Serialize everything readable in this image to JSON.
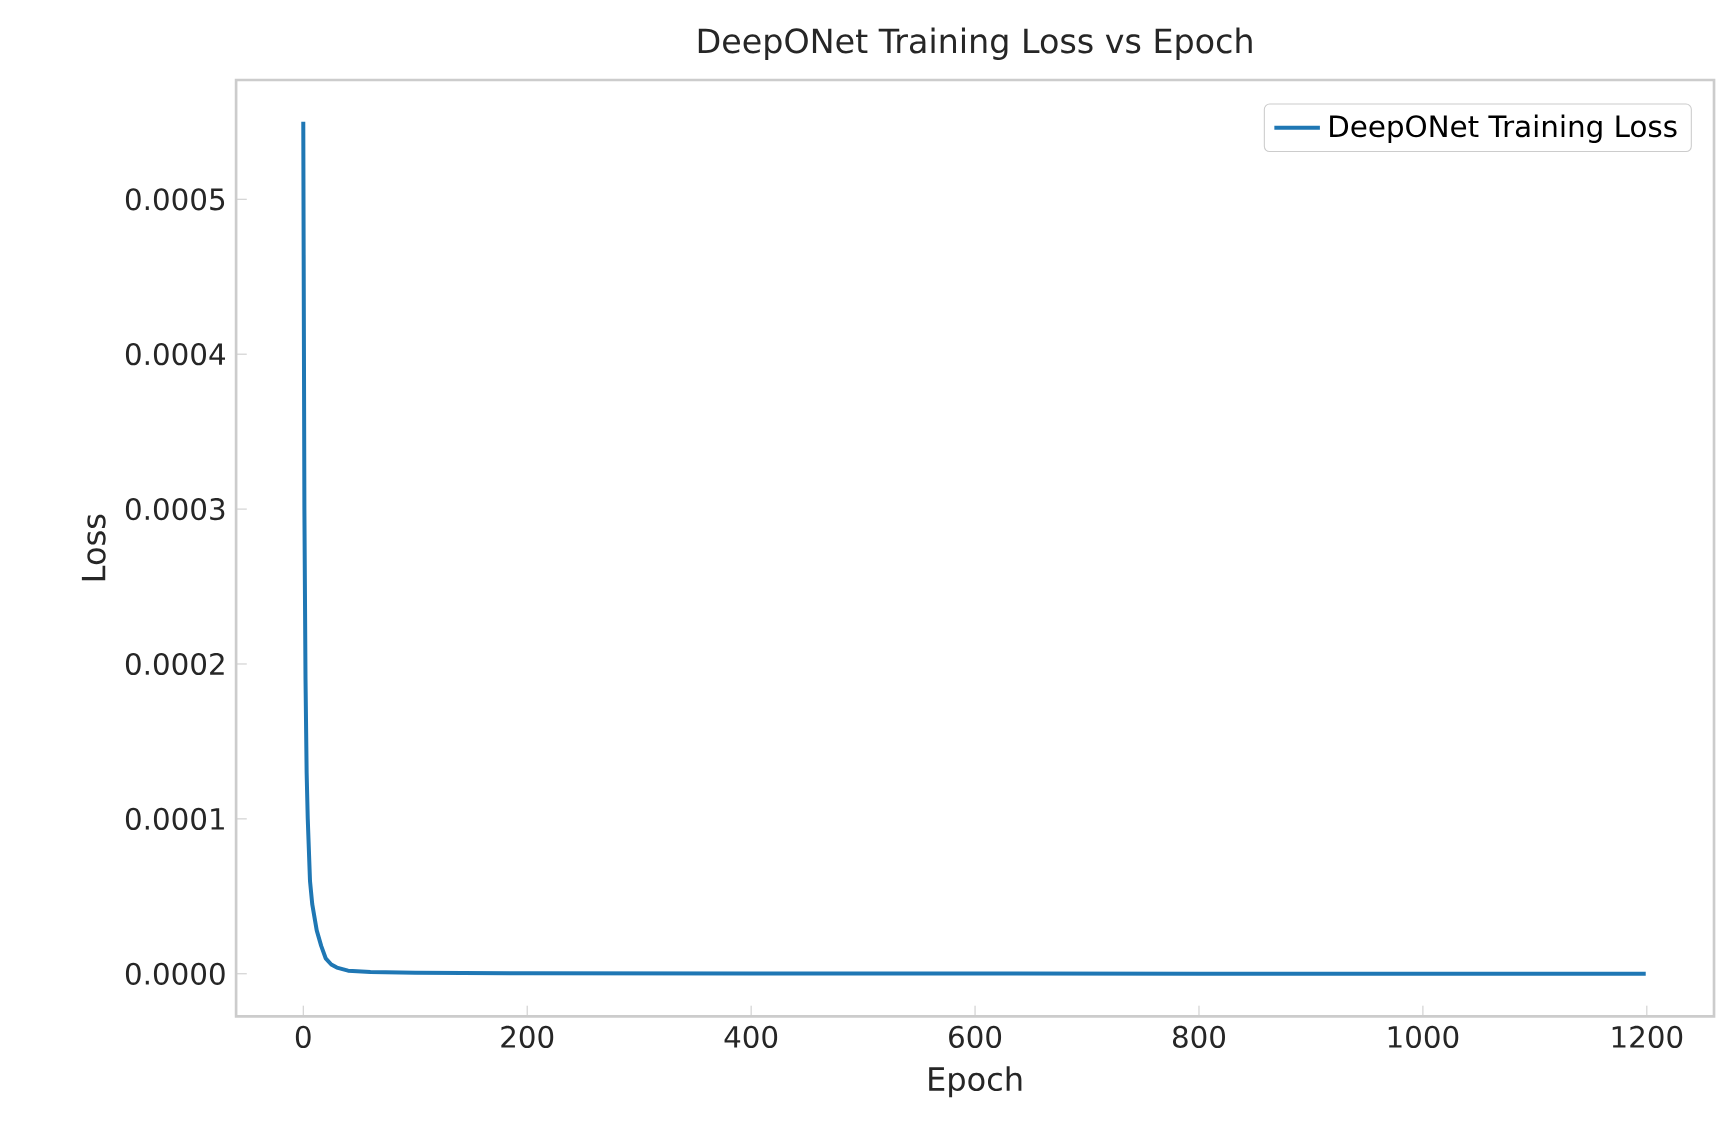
{
  "chart_data": {
    "type": "line",
    "title": "DeepONet Training Loss vs Epoch",
    "xlabel": "Epoch",
    "ylabel": "Loss",
    "series": [
      {
        "name": "DeepONet Training Loss",
        "color": "#1f77b4",
        "x": [
          0,
          1,
          2,
          3,
          4,
          6,
          8,
          12,
          16,
          20,
          25,
          30,
          40,
          60,
          100,
          200,
          400,
          800,
          1199
        ],
        "values": [
          0.00055,
          0.0003,
          0.00019,
          0.00013,
          0.0001,
          6e-05,
          4.5e-05,
          2.8e-05,
          1.8e-05,
          1e-05,
          6e-06,
          4e-06,
          2e-06,
          1.2e-06,
          6e-07,
          3e-07,
          2e-07,
          1e-07,
          1e-07
        ]
      }
    ],
    "xlim": [
      -60,
      1260
    ],
    "ylim": [
      -2.75e-05,
      0.000577
    ],
    "xticks": [
      0,
      200,
      400,
      600,
      800,
      1000,
      1200
    ],
    "yticks": [
      {
        "value": 0,
        "label": "0.0000"
      },
      {
        "value": 0.0001,
        "label": "0.0001"
      },
      {
        "value": 0.0002,
        "label": "0.0002"
      },
      {
        "value": 0.0003,
        "label": "0.0003"
      },
      {
        "value": 0.0004,
        "label": "0.0004"
      },
      {
        "value": 0.0005,
        "label": "0.0005"
      }
    ],
    "grid": false,
    "legend": "top right",
    "marker": "none",
    "line_style": "solid"
  }
}
